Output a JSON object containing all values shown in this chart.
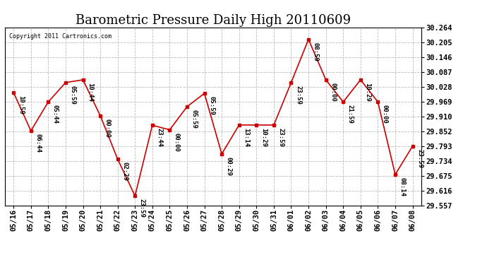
{
  "title": "Barometric Pressure Daily High 20110609",
  "copyright": "Copyright 2011 Cartronics.com",
  "x_labels": [
    "05/16",
    "05/17",
    "05/18",
    "05/19",
    "05/20",
    "05/21",
    "05/22",
    "05/23",
    "05/24",
    "05/25",
    "05/26",
    "05/27",
    "05/28",
    "05/29",
    "05/30",
    "05/31",
    "06/01",
    "06/02",
    "06/03",
    "06/04",
    "06/05",
    "06/06",
    "06/07",
    "06/08"
  ],
  "y_values": [
    30.006,
    29.854,
    29.969,
    30.046,
    30.057,
    29.914,
    29.741,
    29.595,
    29.876,
    29.858,
    29.95,
    30.003,
    29.762,
    29.877,
    29.877,
    29.877,
    30.046,
    30.218,
    30.057,
    29.969,
    30.057,
    29.969,
    29.68,
    29.793
  ],
  "time_labels": [
    "10:59",
    "06:44",
    "05:44",
    "05:59",
    "10:44",
    "00:00",
    "02:29",
    "23:59",
    "23:44",
    "00:00",
    "05:59",
    "05:59",
    "00:29",
    "13:14",
    "10:29",
    "23:59",
    "23:59",
    "08:59",
    "00:00",
    "21:59",
    "10:29",
    "00:00",
    "08:14",
    "23:59"
  ],
  "ylim_min": 29.557,
  "ylim_max": 30.264,
  "yticks": [
    29.557,
    29.616,
    29.675,
    29.734,
    29.793,
    29.852,
    29.91,
    29.969,
    30.028,
    30.087,
    30.146,
    30.205,
    30.264
  ],
  "line_color": "#cc0000",
  "marker_color": "#cc0000",
  "background_color": "#ffffff",
  "grid_color": "#bbbbbb",
  "title_fontsize": 13,
  "label_fontsize": 6.5,
  "tick_fontsize": 7.5,
  "copyright_fontsize": 6.0
}
